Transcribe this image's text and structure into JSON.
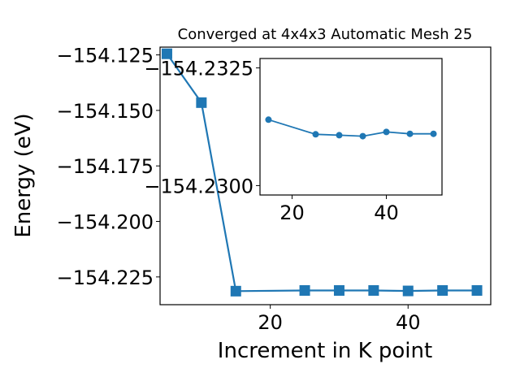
{
  "chart_data": [
    {
      "type": "line",
      "title": "Converged at 4x4x3 Automatic Mesh 25",
      "xlabel": "Increment in K point",
      "ylabel": "Energy (eV)",
      "xlim": [
        4,
        52
      ],
      "ylim": [
        -154.2375,
        -154.1215
      ],
      "xticks": [
        20,
        40
      ],
      "xtick_labels": [
        "20",
        "40"
      ],
      "yticks": [
        -154.125,
        -154.15,
        -154.175,
        -154.2,
        -154.225
      ],
      "ytick_labels": [
        "−154.125",
        "−154.150",
        "−154.175",
        "−154.200",
        "−154.225"
      ],
      "marker": "square",
      "color": "#1f77b4",
      "grid": false,
      "series": [
        {
          "x": [
            5,
            10,
            15,
            25,
            30,
            35,
            40,
            45,
            50
          ],
          "y": [
            -154.1245,
            -154.1465,
            -154.2314,
            -154.2311,
            -154.2311,
            -154.2311,
            -154.2313,
            -154.2311,
            -154.2311
          ]
        }
      ]
    },
    {
      "type": "line",
      "title": "",
      "xlabel": "",
      "ylabel": "",
      "xlim": [
        13.2,
        51.8
      ],
      "ylim": [
        -154.2298,
        -154.2327
      ],
      "xticks": [
        20,
        40
      ],
      "xtick_labels": [
        "20",
        "40"
      ],
      "yticks": [
        -154.2325,
        -154.23
      ],
      "ytick_labels": [
        "−154.2325",
        "−154.2300"
      ],
      "marker": "circle",
      "color": "#1f77b4",
      "grid": false,
      "series": [
        {
          "x": [
            15,
            25,
            30,
            35,
            40,
            45,
            50
          ],
          "y": [
            -154.2314,
            -154.23109,
            -154.23107,
            -154.23105,
            -154.23114,
            -154.2311,
            -154.2311
          ]
        }
      ]
    }
  ]
}
